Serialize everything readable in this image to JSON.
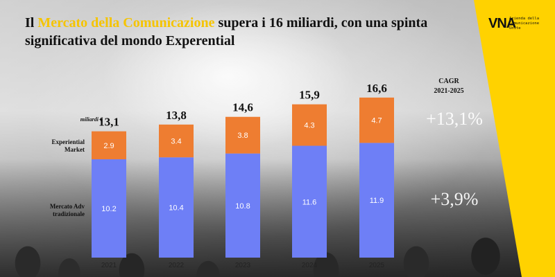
{
  "title": {
    "part1": "Il ",
    "highlight": "Mercato della Comunicazione",
    "part2": " supera i 16 miliardi, con una spinta significativa del mondo Experential"
  },
  "logo": {
    "mark": "VNA",
    "lines": [
      "Azienda della",
      "Comunicazione",
      "Unite"
    ]
  },
  "labels": {
    "unit": "miliardi €",
    "experiential": [
      "Experiential",
      "Market"
    ],
    "traditional": [
      "Mercato Adv",
      "tradizionale"
    ]
  },
  "cagr": {
    "title": "CAGR",
    "period": "2021-2025",
    "experiential": "+13,1%",
    "traditional": "+3,9%"
  },
  "colors": {
    "traditional": "#6e7ff6",
    "experiential": "#ee7d31",
    "accent": "#ffd200"
  },
  "chart_data": {
    "type": "bar",
    "stacked": true,
    "categories": [
      "2021",
      "2022",
      "2023",
      "2024",
      "2025"
    ],
    "series": [
      {
        "name": "Mercato Adv tradizionale",
        "values": [
          10.2,
          10.4,
          10.8,
          11.6,
          11.9
        ]
      },
      {
        "name": "Experiential Market",
        "values": [
          2.9,
          3.4,
          3.8,
          4.3,
          4.7
        ]
      }
    ],
    "totals": [
      "13,1",
      "13,8",
      "14,6",
      "15,9",
      "16,6"
    ],
    "ylabel": "miliardi €",
    "ylim": [
      0,
      17
    ]
  }
}
